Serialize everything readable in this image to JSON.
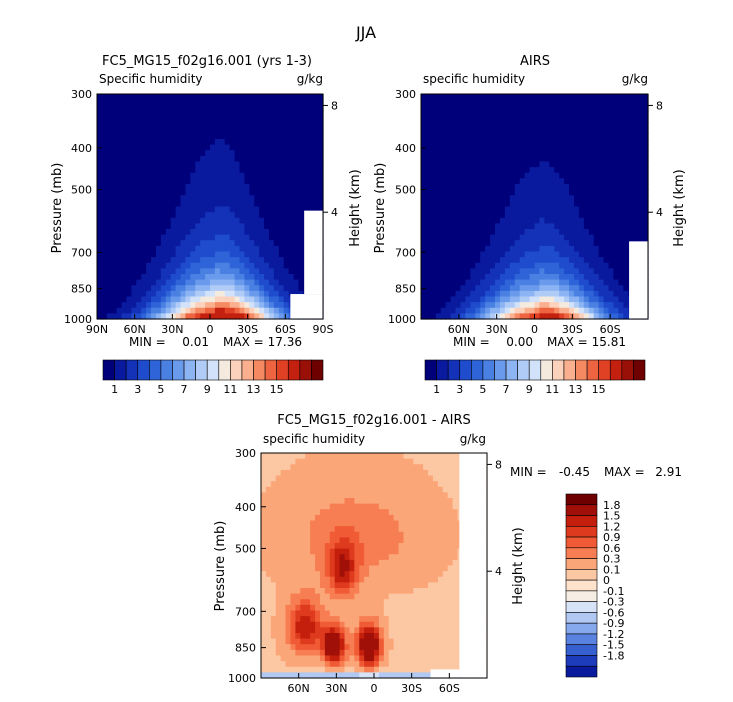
{
  "figure_title": "JJA",
  "chart_data": [
    {
      "type": "heatmap",
      "title": "FC5_MG15_f02g16.001 (yrs 1-3)",
      "subtitle_left": "Specific humidity",
      "subtitle_right": "g/kg",
      "ylabel": "Pressure (mb)",
      "ylabel_right": "Height (km)",
      "x_ticks": [
        "90N",
        "60N",
        "30N",
        "0",
        "30S",
        "60S",
        "90S"
      ],
      "y_ticks": [
        "300",
        "400",
        "500",
        "700",
        "850",
        "1000"
      ],
      "right_ticks": [
        "8",
        "4"
      ],
      "stats": {
        "min_label": "MIN =",
        "min": "0.01",
        "max_label": "MAX =",
        "max": "17.36"
      },
      "field": {
        "peak": 17.36,
        "peak_lat": -5,
        "scale_height_mb": 165,
        "missing_box": "1000-875 mb, 64S-90S"
      },
      "colorbar": {
        "orientation": "horizontal",
        "tick_labels": [
          "1",
          "3",
          "5",
          "7",
          "9",
          "11",
          "13",
          "15"
        ],
        "colors": [
          "#00007a",
          "#0a1a9e",
          "#1432b8",
          "#1e4ccc",
          "#2e64d8",
          "#4a80e2",
          "#6a9aec",
          "#8cb4f2",
          "#b0ccf6",
          "#d2e2fa",
          "#f4eade",
          "#fcd2bc",
          "#fab08e",
          "#f58a62",
          "#ee6440",
          "#e04024",
          "#c4200f",
          "#981008",
          "#6e0000"
        ]
      }
    },
    {
      "type": "heatmap",
      "title": "AIRS",
      "subtitle_left": "specific humidity",
      "subtitle_right": "g/kg",
      "ylabel": "Pressure (mb)",
      "ylabel_right": "Height (km)",
      "x_ticks": [
        "60N",
        "30N",
        "0",
        "30S",
        "60S"
      ],
      "y_ticks": [
        "300",
        "400",
        "500",
        "700",
        "850",
        "1000"
      ],
      "right_ticks": [
        "8",
        "4"
      ],
      "stats": {
        "min_label": "MIN =",
        "min": "0.00",
        "max_label": "MAX =",
        "max": "15.81"
      },
      "field": {
        "peak": 15.81,
        "peak_lat": -5,
        "scale_height_mb": 150,
        "missing_box": "none"
      },
      "colorbar": {
        "orientation": "horizontal",
        "tick_labels": [
          "1",
          "3",
          "5",
          "7",
          "9",
          "11",
          "13",
          "15"
        ],
        "colors": [
          "#00007a",
          "#0a1a9e",
          "#1432b8",
          "#1e4ccc",
          "#2e64d8",
          "#4a80e2",
          "#6a9aec",
          "#8cb4f2",
          "#b0ccf6",
          "#d2e2fa",
          "#f4eade",
          "#fcd2bc",
          "#fab08e",
          "#f58a62",
          "#ee6440",
          "#e04024",
          "#c4200f",
          "#981008",
          "#6e0000"
        ]
      }
    },
    {
      "type": "heatmap",
      "title": "FC5_MG15_f02g16.001 - AIRS",
      "subtitle_left": "specific humidity",
      "subtitle_right": "g/kg",
      "ylabel": "Pressure (mb)",
      "ylabel_right": "Height (km)",
      "x_ticks": [
        "60N",
        "30N",
        "0",
        "30S",
        "60S"
      ],
      "y_ticks": [
        "300",
        "400",
        "500",
        "700",
        "850",
        "1000"
      ],
      "right_ticks": [
        "8",
        "4"
      ],
      "stats": {
        "min_label": "MIN =",
        "min": "-0.45",
        "max_label": "MAX =",
        "max": "2.91"
      },
      "field": {
        "max": 2.91,
        "min": -0.45,
        "missing_box": "1000-955 mb, 45S-65S"
      },
      "colorbar": {
        "orientation": "vertical",
        "tick_labels": [
          "1.8",
          "1.5",
          "1.2",
          "0.9",
          "0.6",
          "0.3",
          "0.1",
          "0",
          "-0.1",
          "-0.3",
          "-0.6",
          "-0.9",
          "-1.2",
          "-1.5",
          "-1.8"
        ],
        "colors": [
          "#6e0000",
          "#a01008",
          "#c41e0c",
          "#de3a1e",
          "#f05a34",
          "#f77e52",
          "#fba678",
          "#fcc8a4",
          "#fde2cc",
          "#f6eee4",
          "#d6e2f6",
          "#b0c8f2",
          "#86a8ec",
          "#5a82e0",
          "#3660d0",
          "#1c3cbc",
          "#0a1a9c"
        ]
      }
    }
  ]
}
